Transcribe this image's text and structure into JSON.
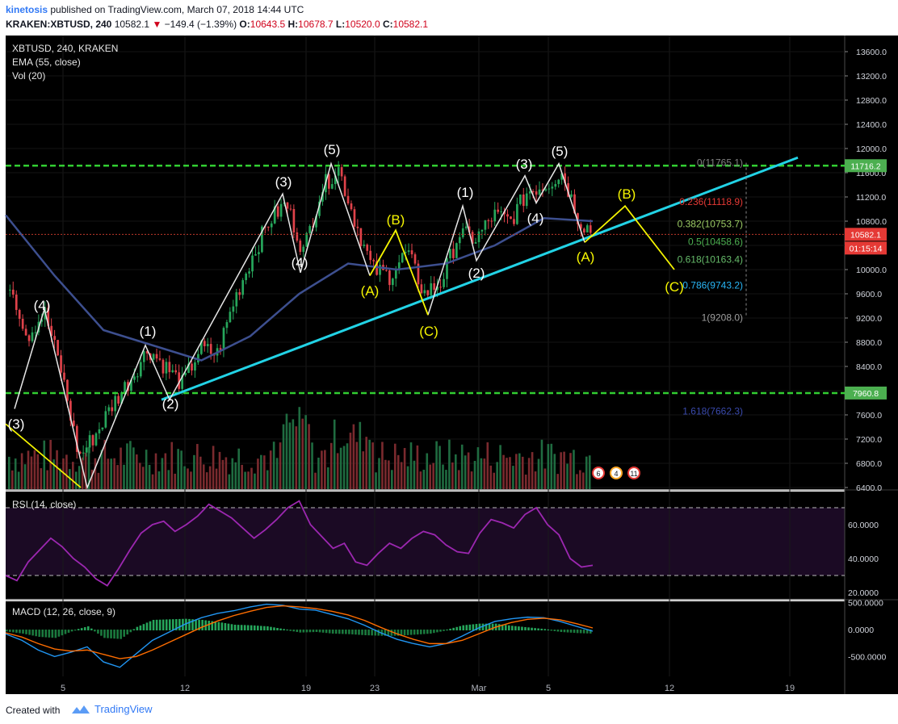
{
  "header": {
    "author": "kinetosis",
    "published_text": "published on TradingView.com, March 07, 2018 14:44 UTC",
    "symbol": "KRAKEN:XBTUSD, 240",
    "last": "10582.1",
    "change": "−149.4 (−1.39%)",
    "o_label": "O:",
    "o_value": "10643.5",
    "h_label": "H:",
    "h_value": "10678.7",
    "l_label": "L:",
    "l_value": "10520.0",
    "c_label": "C:",
    "c_value": "10582.1"
  },
  "legend": {
    "main": "XBTUSD, 240, KRAKEN",
    "ema": "EMA (55, close)",
    "vol": "Vol (20)",
    "rsi": "RSI (14, close)",
    "macd": "MACD (12, 26, close, 9)"
  },
  "footer": {
    "created_with": "Created with",
    "brand": "TradingView"
  },
  "colors": {
    "up": "#26a65b",
    "down": "#e0424a",
    "ema": "#3d4f8f",
    "support": "#22d3e6",
    "level": "#32cd32",
    "impulse": "#e6e6e6",
    "correction": "#f5f500",
    "rsi": "#9c27b0",
    "macd": "#2196f3",
    "signal": "#ff6d00"
  },
  "chart_data": [
    {
      "type": "line",
      "title": "XBTUSD, 240, KRAKEN",
      "x_ticks": [
        "5",
        "12",
        "19",
        "23",
        "Mar",
        "5",
        "12",
        "19"
      ],
      "price_axis_ticks": [
        13600,
        13200,
        12800,
        12400,
        12000,
        11600,
        11200,
        10800,
        10400,
        10000,
        9600,
        9200,
        8800,
        8400,
        8000,
        7600,
        7200,
        6800,
        6400
      ],
      "price_axis_labels": [
        "13600.0",
        "13200.0",
        "12800.0",
        "12400.0",
        "12000.0",
        "11600.0",
        "11200.0",
        "10800.0",
        "10400.0",
        "10000.0",
        "9600.0",
        "9200.0",
        "8800.0",
        "8400.0",
        "8000.0",
        "7600.0",
        "7200.0",
        "6800.0",
        "6400.0"
      ],
      "ylim": [
        6400,
        13950
      ],
      "series": [
        {
          "name": "XBTUSD close (approx.)",
          "x": [
            "Feb 01",
            "Feb 02",
            "Feb 03",
            "Feb 04",
            "Feb 05",
            "Feb 06",
            "Feb 07",
            "Feb 08",
            "Feb 09",
            "Feb 10",
            "Feb 11",
            "Feb 12",
            "Feb 13",
            "Feb 14",
            "Feb 15",
            "Feb 16",
            "Feb 17",
            "Feb 18",
            "Feb 19",
            "Feb 20",
            "Feb 21",
            "Feb 22",
            "Feb 23",
            "Feb 24",
            "Feb 25",
            "Feb 26",
            "Feb 27",
            "Feb 28",
            "Mar 01",
            "Mar 02",
            "Mar 03",
            "Mar 04",
            "Mar 05",
            "Mar 06",
            "Mar 07"
          ],
          "values": [
            9800,
            8900,
            9300,
            8300,
            6900,
            7300,
            7800,
            8200,
            8700,
            8400,
            8100,
            8700,
            8600,
            9500,
            10200,
            10800,
            11100,
            10300,
            11300,
            11700,
            10800,
            10000,
            9900,
            10300,
            9600,
            9800,
            10600,
            10500,
            10900,
            10800,
            11300,
            11400,
            11600,
            10800,
            10582
          ]
        },
        {
          "name": "EMA (55, close)",
          "x": [
            "Feb 01",
            "Feb 04",
            "Feb 07",
            "Feb 10",
            "Feb 13",
            "Feb 16",
            "Feb 19",
            "Feb 22",
            "Feb 25",
            "Feb 28",
            "Mar 03",
            "Mar 06",
            "Mar 07"
          ],
          "values": [
            10900,
            9900,
            9000,
            8750,
            8500,
            8900,
            9600,
            10100,
            10000,
            10100,
            10400,
            10850,
            10800
          ]
        }
      ],
      "horizontal_levels": [
        {
          "label": "11716.2",
          "value": 11716.2
        },
        {
          "label": "7960.8",
          "value": 7960.8
        },
        {
          "label": "10582.1",
          "value": 10582.1
        }
      ],
      "countdown_label": "01:15:14",
      "fibonacci": [
        {
          "label": "0(11765.1)",
          "value": 11765.1
        },
        {
          "label": "0.236(11118.9)",
          "value": 11118.9
        },
        {
          "label": "0.382(10753.7)",
          "value": 10753.7
        },
        {
          "label": "0.5(10458.6)",
          "value": 10458.6
        },
        {
          "label": "0.618(10163.4)",
          "value": 10163.4
        },
        {
          "label": "0.786(9743.2)",
          "value": 9743.2
        },
        {
          "label": "1(9208.0)",
          "value": 9208.0
        },
        {
          "label": "1.618(7662.3)",
          "value": 7662.3
        }
      ],
      "wave_labels": [
        "(3)",
        "(4)",
        "(1)",
        "(2)",
        "(3)",
        "(4)",
        "(5)",
        "(A)",
        "(B)",
        "(C)",
        "(1)",
        "(2)",
        "(3)",
        "(4)",
        "(5)",
        "(A)",
        "(B)",
        "(C)"
      ],
      "event_badges": [
        "6",
        "4",
        "11"
      ]
    },
    {
      "type": "line",
      "title": "RSI (14, close)",
      "axis_labels": [
        "60.0000",
        "40.0000",
        "20.0000"
      ],
      "ylim": [
        18,
        80
      ],
      "bands": [
        70,
        30
      ],
      "series": [
        {
          "name": "RSI (14, close)",
          "values": [
            30,
            27,
            38,
            45,
            52,
            47,
            40,
            35,
            28,
            24,
            34,
            45,
            55,
            60,
            62,
            56,
            60,
            65,
            72,
            68,
            64,
            58,
            52,
            57,
            63,
            70,
            74,
            60,
            53,
            46,
            49,
            38,
            36,
            43,
            49,
            46,
            52,
            56,
            54,
            48,
            44,
            43,
            55,
            63,
            61,
            58,
            66,
            70,
            60,
            54,
            40,
            35,
            36
          ]
        }
      ]
    },
    {
      "type": "line",
      "title": "MACD (12, 26, close, 9)",
      "axis_labels": [
        "500.0000",
        "0.0000",
        "-500.0000"
      ],
      "ylim": [
        -800,
        550
      ],
      "series": [
        {
          "name": "MACD",
          "values": [
            -80,
            -200,
            -380,
            -500,
            -420,
            -320,
            -600,
            -700,
            -450,
            -200,
            -50,
            100,
            220,
            300,
            350,
            420,
            470,
            450,
            380,
            360,
            280,
            200,
            80,
            -60,
            -180,
            -260,
            -320,
            -260,
            -120,
            30,
            150,
            200,
            230,
            220,
            150,
            60,
            -30
          ]
        },
        {
          "name": "Signal",
          "values": [
            -60,
            -140,
            -260,
            -360,
            -400,
            -380,
            -460,
            -540,
            -500,
            -380,
            -240,
            -100,
            40,
            160,
            260,
            340,
            410,
            440,
            420,
            390,
            340,
            270,
            170,
            40,
            -80,
            -180,
            -260,
            -260,
            -200,
            -80,
            40,
            130,
            190,
            210,
            180,
            110,
            30
          ]
        }
      ]
    }
  ]
}
